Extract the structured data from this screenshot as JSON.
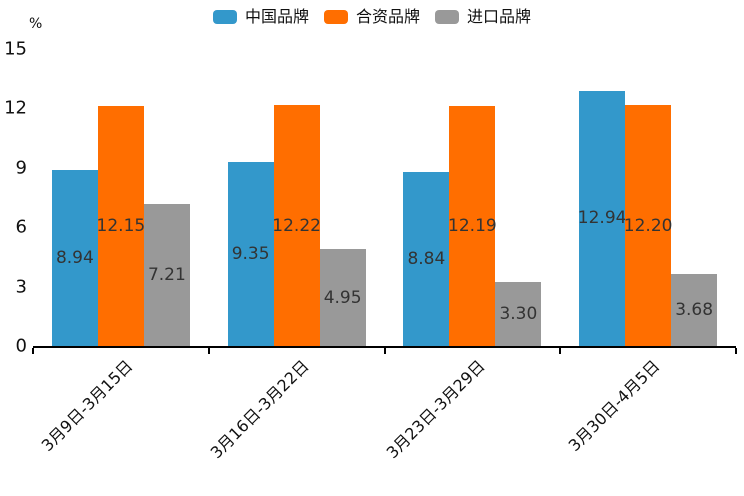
{
  "chart_data": {
    "type": "bar",
    "title": "",
    "y_unit_label": "%",
    "categories": [
      "3月9日-3月15日",
      "3月16日-3月22日",
      "3月23日-3月29日",
      "3月30日-4月5日"
    ],
    "series": [
      {
        "name": "中国品牌",
        "color": "#3398CB",
        "values": [
          8.94,
          9.35,
          8.84,
          12.94
        ]
      },
      {
        "name": "合资品牌",
        "color": "#FF6E00",
        "values": [
          12.15,
          12.22,
          12.19,
          12.2
        ]
      },
      {
        "name": "进口品牌",
        "color": "#999999",
        "values": [
          7.21,
          4.95,
          3.3,
          3.68
        ]
      }
    ],
    "value_labels": [
      [
        "8.94",
        "9.35",
        "8.84",
        "12.94"
      ],
      [
        "12.15",
        "12.22",
        "12.19",
        "12.20"
      ],
      [
        "7.21",
        "4.95",
        "3.30",
        "3.68"
      ]
    ],
    "ylim": [
      0,
      15
    ],
    "yticks": [
      0,
      3,
      6,
      9,
      12,
      15
    ],
    "legend_position": "top-center",
    "grid": false,
    "axis_color": "#000000",
    "value_label_color": "#333333"
  }
}
